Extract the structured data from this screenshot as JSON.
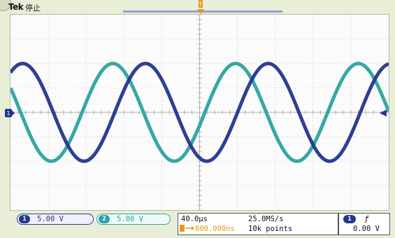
{
  "header": {
    "brand": "Tek",
    "acq_state": "停止"
  },
  "channels": [
    {
      "id": "1",
      "scale": "5.00 V",
      "color": "#24358c"
    },
    {
      "id": "2",
      "scale": "5.00 V",
      "color": "#2aa3a0"
    }
  ],
  "horizontal": {
    "time_div": "40.0µs",
    "sample_rate": "25.0MS/s",
    "delay": "800.000ns",
    "record_length": "10k points"
  },
  "trigger": {
    "source": "1",
    "slope_symbol": "ƒ",
    "level": "0.00 V"
  },
  "icons": {
    "ch1_ground": "channel-1-ground-marker",
    "trigger_pos": "trigger-position-marker",
    "trigger_level": "trigger-level-arrow",
    "delay": "delay-marker"
  },
  "colors": {
    "background": "#e9eed7",
    "screen": "#fbfbfb",
    "grid": "#c8c8c8",
    "ch1": "#24358c",
    "ch2": "#2aa3a0",
    "accent": "#e39a1d"
  }
}
